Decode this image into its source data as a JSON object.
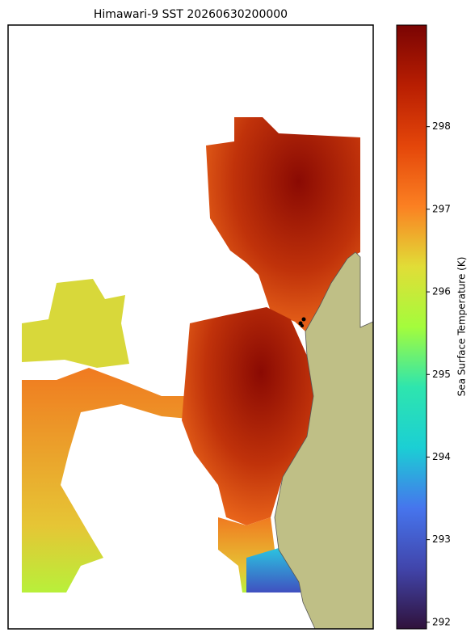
{
  "title": "Himawari-9 SST 20260630200000",
  "colorbar": {
    "label": "Sea Surface Temperature (K)",
    "lim": [
      291.92,
      299.23
    ],
    "ticks": [
      292,
      293,
      294,
      295,
      296,
      297,
      298
    ]
  }
}
